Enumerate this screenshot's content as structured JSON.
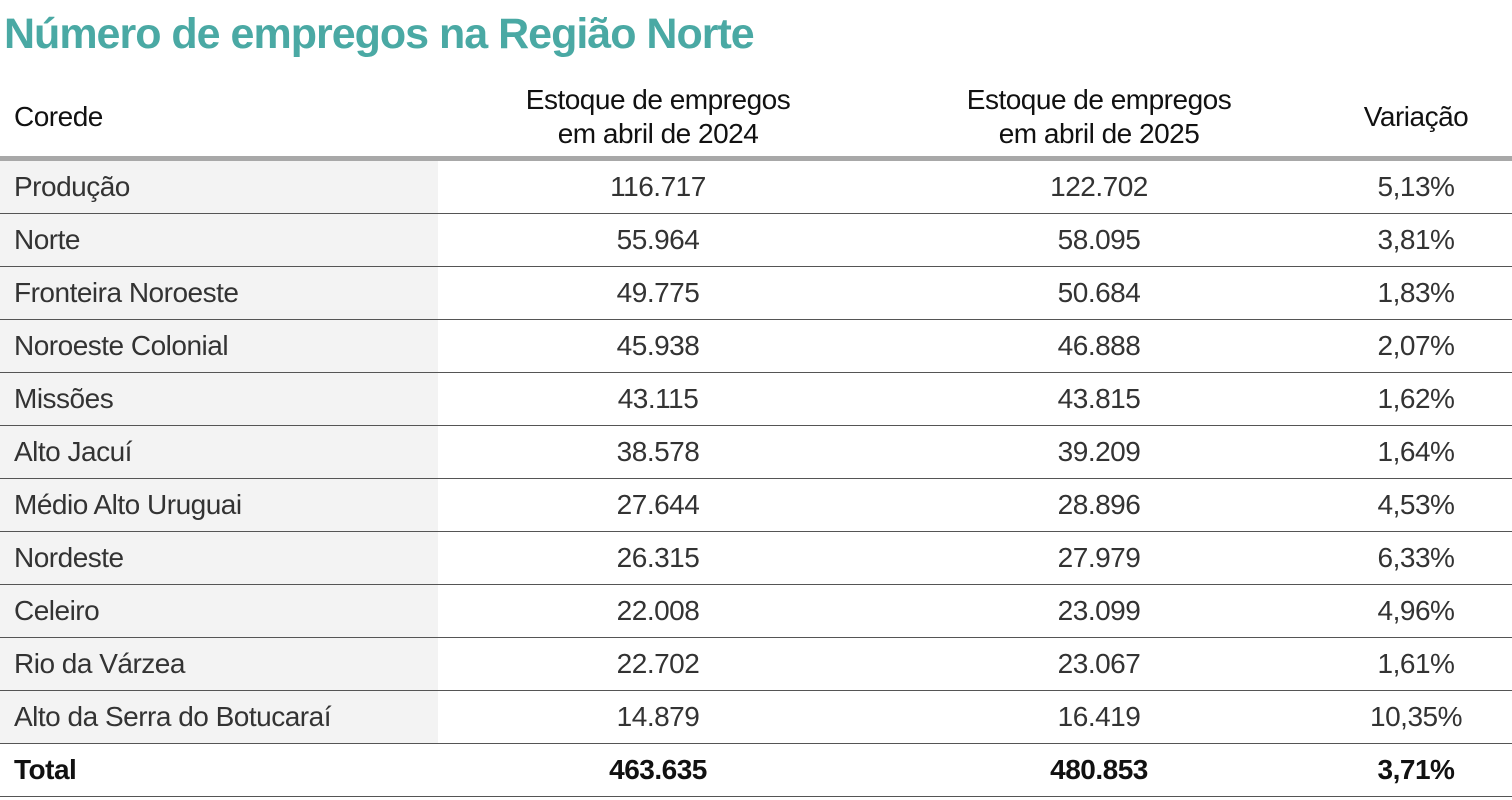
{
  "title": "Número de empregos na Região Norte",
  "chart_data": {
    "type": "table",
    "title": "Número de empregos na Região Norte",
    "columns": [
      "Corede",
      "Estoque de empregos em abril de 2024",
      "Estoque de empregos em abril de 2025",
      "Variação"
    ],
    "header": {
      "c1": "Corede",
      "c2_l1": "Estoque de empregos",
      "c2_l2": "em abril de 2024",
      "c3_l1": "Estoque de empregos",
      "c3_l2": "em abril de 2025",
      "c4": "Variação"
    },
    "rows": [
      [
        "Produção",
        "116.717",
        "122.702",
        "5,13%"
      ],
      [
        "Norte",
        "55.964",
        "58.095",
        "3,81%"
      ],
      [
        "Fronteira Noroeste",
        "49.775",
        "50.684",
        "1,83%"
      ],
      [
        "Noroeste Colonial",
        "45.938",
        "46.888",
        "2,07%"
      ],
      [
        "Missões",
        "43.115",
        "43.815",
        "1,62%"
      ],
      [
        "Alto Jacuí",
        "38.578",
        "39.209",
        "1,64%"
      ],
      [
        "Médio Alto Uruguai",
        "27.644",
        "28.896",
        "4,53%"
      ],
      [
        "Nordeste",
        "26.315",
        "27.979",
        "6,33%"
      ],
      [
        "Celeiro",
        "22.008",
        "23.099",
        "4,96%"
      ],
      [
        "Rio da Várzea",
        "22.702",
        "23.067",
        "1,61%"
      ],
      [
        "Alto da Serra do Botucaraí",
        "14.879",
        "16.419",
        "10,35%"
      ]
    ],
    "total": [
      "Total",
      "463.635",
      "480.853",
      "3,71%"
    ]
  },
  "colors": {
    "title": "#4aa9a4",
    "first_column_bg": "#f3f3f3",
    "header_rule": "#a8a8a8"
  }
}
